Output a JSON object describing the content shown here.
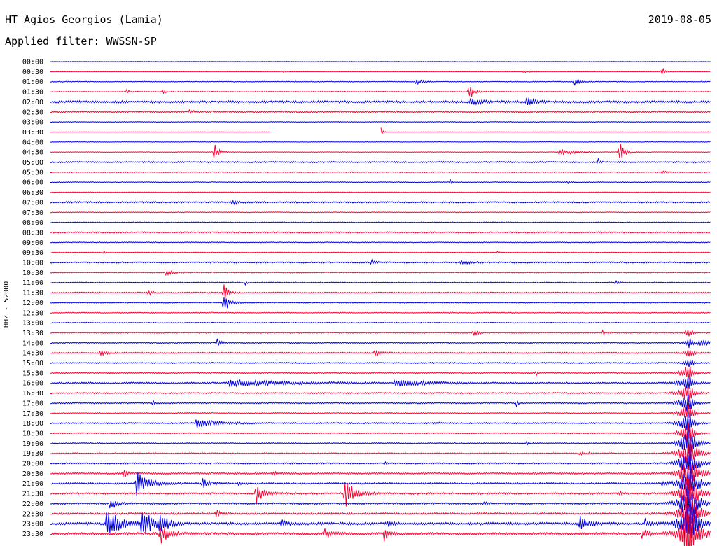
{
  "header": {
    "station": "HT Agios Georgios (Lamia)",
    "date": "2019-08-05",
    "filter": "Applied filter: WWSSN-SP"
  },
  "chart_data": {
    "type": "line",
    "title": "HT Agios Georgios (Lamia)",
    "subtitle": "Applied filter: WWSSN-SP",
    "date": "2019-08-05",
    "ylabel": "HHZ - 52000",
    "xlabel": "",
    "grid": false,
    "colors": {
      "blue": "#0000e0",
      "red": "#ff0033"
    },
    "trace_colors": [
      "blue",
      "red"
    ],
    "row_labels": [
      "00:00",
      "00:30",
      "01:00",
      "01:30",
      "02:00",
      "02:30",
      "03:00",
      "03:30",
      "04:00",
      "04:30",
      "05:00",
      "05:30",
      "06:00",
      "06:30",
      "07:00",
      "07:30",
      "08:00",
      "08:30",
      "09:00",
      "09:30",
      "10:00",
      "10:30",
      "11:00",
      "11:30",
      "12:00",
      "12:30",
      "13:00",
      "13:30",
      "14:00",
      "14:30",
      "15:00",
      "15:30",
      "16:00",
      "16:30",
      "17:00",
      "17:30",
      "18:00",
      "18:30",
      "19:00",
      "19:30",
      "20:00",
      "20:30",
      "21:00",
      "21:30",
      "22:00",
      "22:30",
      "23:00",
      "23:30"
    ],
    "noise": [
      0.3,
      0.3,
      0.6,
      0.6,
      1.6,
      1.2,
      0.5,
      0.3,
      0.4,
      0.4,
      1.0,
      0.7,
      0.6,
      0.5,
      1.1,
      0.6,
      0.6,
      1.0,
      0.6,
      0.6,
      1.0,
      0.7,
      0.7,
      0.9,
      0.7,
      0.7,
      0.7,
      0.8,
      0.9,
      1.0,
      0.9,
      1.0,
      1.2,
      1.0,
      1.0,
      0.8,
      1.0,
      0.8,
      0.8,
      0.8,
      1.0,
      1.2,
      1.2,
      1.3,
      1.2,
      1.3,
      1.8,
      1.8
    ],
    "gaps": [
      {
        "row": 7,
        "from": 0.333,
        "to": 0.5
      }
    ],
    "events": [
      {
        "row": 1,
        "t": 0.352,
        "amp": 1.5,
        "dur": 0.003
      },
      {
        "row": 1,
        "t": 0.715,
        "amp": 1.5,
        "dur": 0.018
      },
      {
        "row": 1,
        "t": 0.925,
        "amp": 11,
        "dur": 0.006
      },
      {
        "row": 2,
        "t": 0.553,
        "amp": 5,
        "dur": 0.012
      },
      {
        "row": 2,
        "t": 0.793,
        "amp": 8,
        "dur": 0.01
      },
      {
        "row": 3,
        "t": 0.115,
        "amp": 4,
        "dur": 0.006
      },
      {
        "row": 3,
        "t": 0.17,
        "amp": 4,
        "dur": 0.006
      },
      {
        "row": 3,
        "t": 0.633,
        "amp": 14,
        "dur": 0.01
      },
      {
        "row": 4,
        "t": 0.635,
        "amp": 4,
        "dur": 0.03
      },
      {
        "row": 4,
        "t": 0.72,
        "amp": 7,
        "dur": 0.02
      },
      {
        "row": 5,
        "t": 0.21,
        "amp": 3,
        "dur": 0.01
      },
      {
        "row": 7,
        "t": 0.5,
        "amp": 14,
        "dur": 0.002
      },
      {
        "row": 9,
        "t": 0.248,
        "amp": 13,
        "dur": 0.01
      },
      {
        "row": 9,
        "t": 0.77,
        "amp": 5,
        "dur": 0.04
      },
      {
        "row": 9,
        "t": 0.86,
        "amp": 17,
        "dur": 0.012
      },
      {
        "row": 10,
        "t": 0.828,
        "amp": 6,
        "dur": 0.004
      },
      {
        "row": 11,
        "t": 0.925,
        "amp": 2,
        "dur": 0.01
      },
      {
        "row": 12,
        "t": 0.605,
        "amp": 3,
        "dur": 0.003
      },
      {
        "row": 12,
        "t": 0.782,
        "amp": 3,
        "dur": 0.004
      },
      {
        "row": 14,
        "t": 0.275,
        "amp": 3,
        "dur": 0.02
      },
      {
        "row": 19,
        "t": 0.08,
        "amp": 3,
        "dur": 0.005
      },
      {
        "row": 19,
        "t": 0.675,
        "amp": 3,
        "dur": 0.004
      },
      {
        "row": 20,
        "t": 0.485,
        "amp": 4,
        "dur": 0.015
      },
      {
        "row": 20,
        "t": 0.62,
        "amp": 3,
        "dur": 0.02
      },
      {
        "row": 21,
        "t": 0.175,
        "amp": 4,
        "dur": 0.02
      },
      {
        "row": 22,
        "t": 0.295,
        "amp": 3,
        "dur": 0.004
      },
      {
        "row": 22,
        "t": 0.855,
        "amp": 3,
        "dur": 0.005
      },
      {
        "row": 23,
        "t": 0.148,
        "amp": 4,
        "dur": 0.01
      },
      {
        "row": 23,
        "t": 0.262,
        "amp": 16,
        "dur": 0.01
      },
      {
        "row": 24,
        "t": 0.262,
        "amp": 22,
        "dur": 0.012
      },
      {
        "row": 27,
        "t": 0.64,
        "amp": 6,
        "dur": 0.01
      },
      {
        "row": 27,
        "t": 0.835,
        "amp": 3,
        "dur": 0.01
      },
      {
        "row": 28,
        "t": 0.252,
        "amp": 8,
        "dur": 0.008
      },
      {
        "row": 28,
        "t": 0.98,
        "amp": 6,
        "dur": 0.03
      },
      {
        "row": 29,
        "t": 0.075,
        "amp": 4,
        "dur": 0.015
      },
      {
        "row": 29,
        "t": 0.49,
        "amp": 5,
        "dur": 0.015
      },
      {
        "row": 31,
        "t": 0.735,
        "amp": 3,
        "dur": 0.004
      },
      {
        "row": 32,
        "t": 0.27,
        "amp": 5,
        "dur": 0.13
      },
      {
        "row": 32,
        "t": 0.52,
        "amp": 5,
        "dur": 0.08
      },
      {
        "row": 34,
        "t": 0.155,
        "amp": 3,
        "dur": 0.005
      },
      {
        "row": 34,
        "t": 0.705,
        "amp": 5,
        "dur": 0.004
      },
      {
        "row": 36,
        "t": 0.22,
        "amp": 8,
        "dur": 0.05
      },
      {
        "row": 36,
        "t": 0.58,
        "amp": 2,
        "dur": 0.01
      },
      {
        "row": 38,
        "t": 0.72,
        "amp": 2,
        "dur": 0.01
      },
      {
        "row": 39,
        "t": 0.8,
        "amp": 3,
        "dur": 0.02
      },
      {
        "row": 40,
        "t": 0.505,
        "amp": 2,
        "dur": 0.006
      },
      {
        "row": 41,
        "t": 0.11,
        "amp": 6,
        "dur": 0.012
      },
      {
        "row": 41,
        "t": 0.335,
        "amp": 4,
        "dur": 0.01
      },
      {
        "row": 42,
        "t": 0.13,
        "amp": 18,
        "dur": 0.03
      },
      {
        "row": 42,
        "t": 0.23,
        "amp": 8,
        "dur": 0.02
      },
      {
        "row": 42,
        "t": 0.285,
        "amp": 3,
        "dur": 0.01
      },
      {
        "row": 42,
        "t": 0.925,
        "amp": 3,
        "dur": 0.01
      },
      {
        "row": 43,
        "t": 0.31,
        "amp": 15,
        "dur": 0.02
      },
      {
        "row": 43,
        "t": 0.445,
        "amp": 22,
        "dur": 0.025
      },
      {
        "row": 43,
        "t": 0.86,
        "amp": 3,
        "dur": 0.01
      },
      {
        "row": 44,
        "t": 0.09,
        "amp": 12,
        "dur": 0.012
      },
      {
        "row": 44,
        "t": 0.655,
        "amp": 3,
        "dur": 0.008
      },
      {
        "row": 45,
        "t": 0.25,
        "amp": 8,
        "dur": 0.012
      },
      {
        "row": 46,
        "t": 0.085,
        "amp": 22,
        "dur": 0.035
      },
      {
        "row": 46,
        "t": 0.138,
        "amp": 20,
        "dur": 0.03
      },
      {
        "row": 46,
        "t": 0.165,
        "amp": 14,
        "dur": 0.02
      },
      {
        "row": 46,
        "t": 0.35,
        "amp": 6,
        "dur": 0.01
      },
      {
        "row": 46,
        "t": 0.51,
        "amp": 5,
        "dur": 0.01
      },
      {
        "row": 46,
        "t": 0.8,
        "amp": 12,
        "dur": 0.02
      },
      {
        "row": 46,
        "t": 0.9,
        "amp": 6,
        "dur": 0.01
      },
      {
        "row": 47,
        "t": 0.165,
        "amp": 18,
        "dur": 0.02
      },
      {
        "row": 47,
        "t": 0.415,
        "amp": 10,
        "dur": 0.012
      },
      {
        "row": 47,
        "t": 0.505,
        "amp": 10,
        "dur": 0.012
      },
      {
        "row": 47,
        "t": 0.895,
        "amp": 10,
        "dur": 0.012
      }
    ],
    "overlays": [
      {
        "from_row": 27,
        "to_row": 47,
        "t": 0.967,
        "amp": 22,
        "dur": 0.004
      },
      {
        "from_row": 31,
        "to_row": 47,
        "t": 0.96,
        "amp": 18,
        "dur": 0.008
      },
      {
        "from_row": 38,
        "to_row": 47,
        "t": 0.975,
        "amp": 16,
        "dur": 0.012
      }
    ]
  }
}
